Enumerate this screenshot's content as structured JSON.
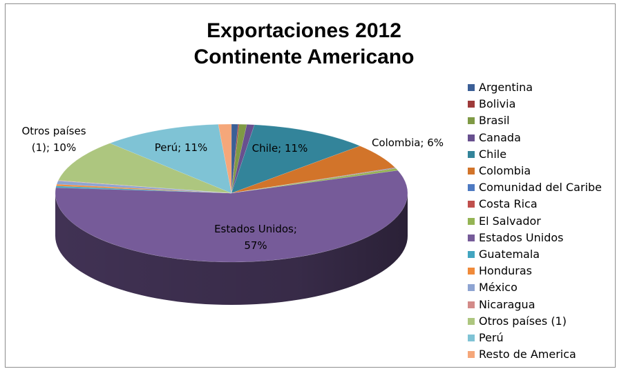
{
  "chart_data": {
    "type": "pie",
    "title": "Exportaciones 2012",
    "subtitle": "Continente Americano",
    "legend_position": "right",
    "three_d": true,
    "series": [
      {
        "name": "Argentina",
        "value": 0.6,
        "color": "#3b5f96"
      },
      {
        "name": "Bolivia",
        "value": 0.1,
        "color": "#9e3b3a"
      },
      {
        "name": "Brasil",
        "value": 0.7,
        "color": "#7f9a45"
      },
      {
        "name": "Canada",
        "value": 0.7,
        "color": "#68508f"
      },
      {
        "name": "Chile",
        "value": 11,
        "color": "#33849a"
      },
      {
        "name": "Colombia",
        "value": 6,
        "color": "#d2742a"
      },
      {
        "name": "Comunidad del Caribe",
        "value": 0.1,
        "color": "#4e7ac2"
      },
      {
        "name": "Costa Rica",
        "value": 0.1,
        "color": "#c0504d"
      },
      {
        "name": "El Salvador",
        "value": 0.5,
        "color": "#94b454"
      },
      {
        "name": "Estados Unidos",
        "value": 57,
        "color": "#765b99"
      },
      {
        "name": "Guatemala",
        "value": 0.4,
        "color": "#42a5c0"
      },
      {
        "name": "Honduras",
        "value": 0.4,
        "color": "#f08a3a"
      },
      {
        "name": "México",
        "value": 0.8,
        "color": "#8ea4d2"
      },
      {
        "name": "Nicaragua",
        "value": 0.1,
        "color": "#d38b89"
      },
      {
        "name": "Otros países (1)",
        "value": 10,
        "color": "#adc67f"
      },
      {
        "name": "Perú",
        "value": 11,
        "color": "#7fc3d5"
      },
      {
        "name": "Resto de America",
        "value": 1.2,
        "color": "#f5a77a"
      }
    ],
    "data_labels": [
      {
        "series": "Chile",
        "lines": [
          "Chile; 11%"
        ]
      },
      {
        "series": "Colombia",
        "lines": [
          "Colombia; 6%"
        ]
      },
      {
        "series": "Estados Unidos",
        "lines": [
          "Estados Unidos;",
          "57%"
        ]
      },
      {
        "series": "Otros países (1)",
        "lines": [
          "Otros países",
          "(1); 10%"
        ]
      },
      {
        "series": "Perú",
        "lines": [
          "Perú; 11%"
        ]
      }
    ]
  }
}
